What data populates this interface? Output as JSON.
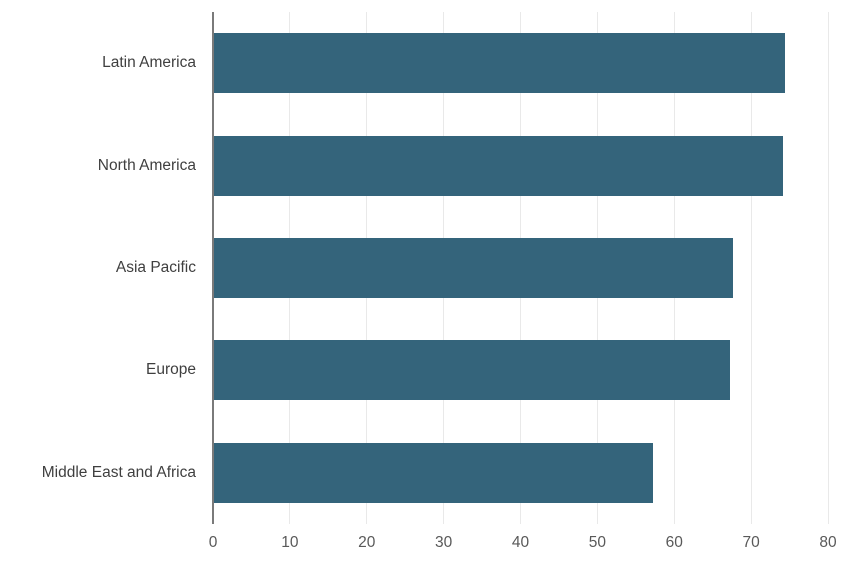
{
  "chart_data": {
    "type": "bar",
    "orientation": "horizontal",
    "title": "",
    "xlabel": "",
    "ylabel": "",
    "categories": [
      "Latin America",
      "North America",
      "Asia Pacific",
      "Europe",
      "Middle East and Africa"
    ],
    "values": [
      74.4,
      74.2,
      67.6,
      67.2,
      57.2
    ],
    "xlim": [
      0,
      80
    ],
    "xticks": [
      "0",
      "10",
      "20",
      "30",
      "40",
      "50",
      "60",
      "70",
      "80"
    ],
    "grid": "vertical",
    "legend": "none",
    "colors": {
      "bar": "#34647b",
      "gridline": "#e9e9e9",
      "axis_line": "#7a7a7a",
      "category_label": "#3f3f3f",
      "tick_label": "#595959",
      "background": "#ffffff"
    }
  }
}
